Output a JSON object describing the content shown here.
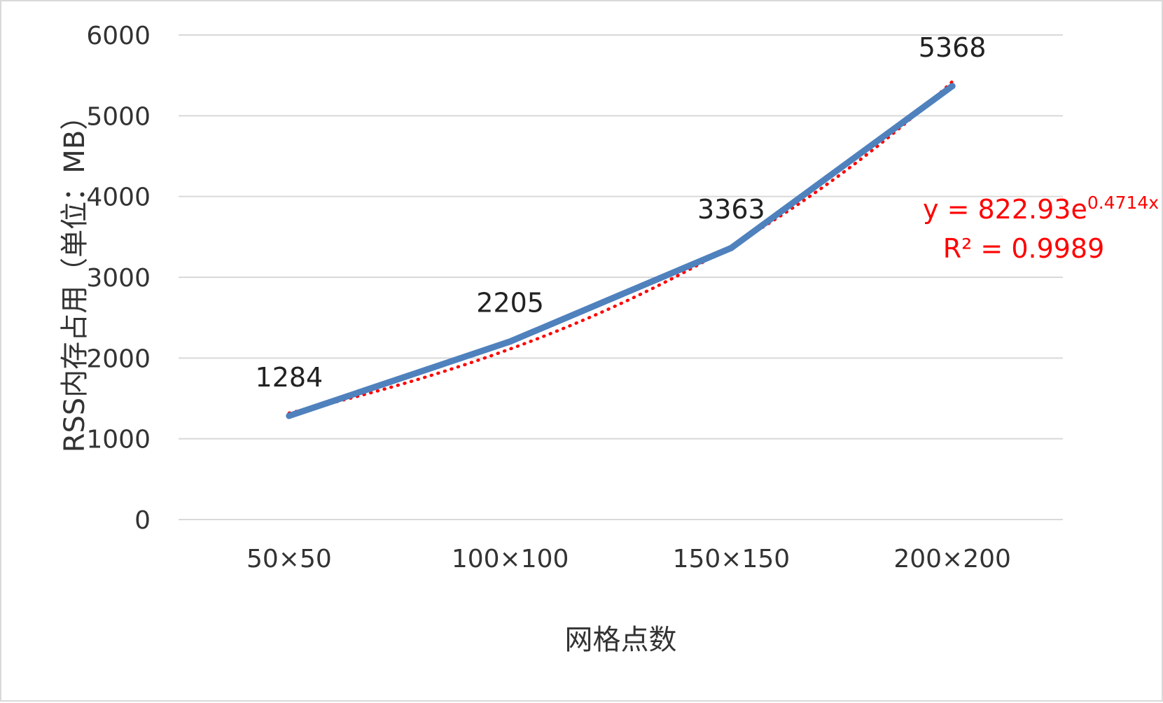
{
  "chart_data": {
    "type": "line",
    "title": "",
    "xlabel": "网格点数",
    "ylabel": "RSS内存占用（单位：MB）",
    "categories": [
      "50×50",
      "100×100",
      "150×150",
      "200×200"
    ],
    "series": [
      {
        "values": [
          1284,
          2205,
          3363,
          5368
        ],
        "color": "#4f81bd",
        "data_labels": [
          "1284",
          "2205",
          "3363",
          "5368"
        ]
      }
    ],
    "trendline": {
      "type": "exponential",
      "a": 822.93,
      "b": 0.4714,
      "equation_prefix": "y = 822.93e",
      "equation_exponent": "0.4714x",
      "r_squared_label": "R² = 0.9989",
      "color": "#ff0000"
    },
    "ylim": [
      0,
      6000
    ],
    "yticks": [
      "0",
      "1000",
      "2000",
      "3000",
      "4000",
      "5000",
      "6000"
    ],
    "grid": true,
    "legend": "none"
  }
}
